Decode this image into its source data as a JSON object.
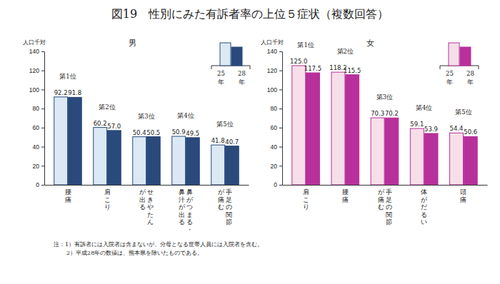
{
  "title": "図19　性別にみた有訴者率の上位５症状（複数回答）",
  "notes": [
    "注：1）有訴者には入院者は含まないが、分母となる世帯人員には入院者を含む。",
    "2）平成28年の数値は、熊本県を除いたものである。"
  ],
  "chart_data": [
    {
      "type": "bar",
      "subtitle": "男",
      "y_label": "人口千対",
      "categories": [
        "腰痛",
        "肩こり",
        "せきやたん\nが出る",
        "鼻がつまる・\n鼻汁が出る",
        "手足の関節\nが痛む"
      ],
      "annotations": [
        "第1位",
        "第2位",
        "第3位",
        "第4位",
        "第5位"
      ],
      "series": [
        {
          "name": "25年",
          "color": "#dce9f5",
          "values": [
            92.2,
            60.2,
            50.4,
            50.9,
            41.8
          ]
        },
        {
          "name": "28年",
          "color": "#2a4a7c",
          "values": [
            91.8,
            57.0,
            50.5,
            49.5,
            40.7
          ],
          "value_labels": [
            "91.8",
            "57.0",
            "50.5",
            "49.5",
            "40.7"
          ]
        }
      ],
      "ylim": [
        0,
        140
      ],
      "yticks": [
        0,
        20,
        40,
        60,
        80,
        100,
        120,
        140
      ],
      "grid": false,
      "data_labels": true,
      "legend": "upper right"
    },
    {
      "type": "bar",
      "subtitle": "女",
      "y_label": "人口千対",
      "categories": [
        "肩こり",
        "腰痛",
        "手足の関節\nが痛む",
        "体がだるい",
        "頭痛"
      ],
      "annotations": [
        "第1位",
        "第2位",
        "第3位",
        "第4位",
        "第5位"
      ],
      "series": [
        {
          "name": "25年",
          "color": "#f6dfe8",
          "values": [
            125.0,
            118.2,
            70.3,
            59.1,
            54.4
          ],
          "value_labels": [
            "125.0",
            "118.2",
            "70.3",
            "59.1",
            "54.4"
          ]
        },
        {
          "name": "28年",
          "color": "#b8309b",
          "values": [
            117.5,
            115.5,
            70.2,
            53.9,
            50.6
          ]
        }
      ],
      "ylim": [
        0,
        140
      ],
      "yticks": [
        0,
        20,
        40,
        60,
        80,
        100,
        120,
        140
      ],
      "grid": false,
      "data_labels": true,
      "legend": "upper right"
    }
  ]
}
